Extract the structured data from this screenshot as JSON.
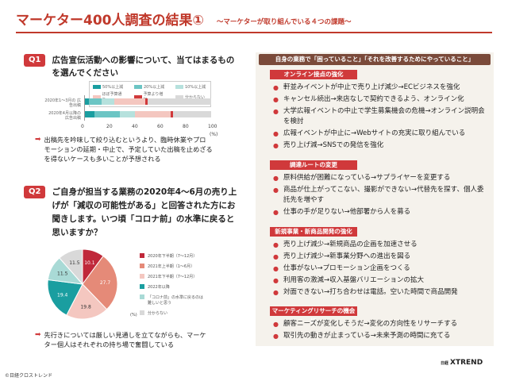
{
  "header": {
    "title": "マーケター400人調査の結果①",
    "subtitle": "〜マーケターが取り組んでいる４つの課題〜"
  },
  "q1": {
    "badge": "Q1",
    "question_lines": [
      "広告宣伝活動への影響について、当てはまるもの",
      "を選んでください"
    ],
    "note_lines": [
      "出稿先を吟味して絞り込むというより、臨時休業やプロ",
      "モーションの延期・中止で、予定していた出稿を止めざる",
      "を得ないケースも多いことが予想される"
    ]
  },
  "q2": {
    "badge": "Q2",
    "question_lines": [
      "ご自身が担当する業務の2020年4〜6月の売り上",
      "げが「減収の可能性がある」と回答された方にお",
      "聞きします。いつ頃「コロナ前」の水準に戻ると",
      "思いますか？"
    ],
    "note_lines": [
      "先行きについては厳しい見通しを立てながらも、マーケ",
      "ター個人はそれぞれの持ち場で奮闘している"
    ]
  },
  "chart_data": [
    {
      "type": "bar",
      "orientation": "horizontal",
      "stacked": true,
      "categories": [
        "2020年1〜3月の\n広告出稿",
        "2020年4月以降の\n広告出稿"
      ],
      "series": [
        {
          "name": "50%以上減",
          "color": "#1a9ea0",
          "values": [
            4,
            8
          ]
        },
        {
          "name": "20%以上減",
          "color": "#6cc5c4",
          "values": [
            10,
            20
          ]
        },
        {
          "name": "10%以上減",
          "color": "#b6e1dd",
          "values": [
            10,
            12
          ]
        },
        {
          "name": "ほぼ予算通り",
          "color": "#f4c7c0",
          "values": [
            24,
            28
          ]
        },
        {
          "name": "予算より増加",
          "color": "#d0393b",
          "values": [
            2,
            2
          ]
        },
        {
          "name": "分からない",
          "color": "#d9d9d9",
          "values": [
            50,
            30
          ]
        }
      ],
      "x_ticks": [
        "0",
        "20",
        "40",
        "60",
        "80",
        "100"
      ],
      "xlim": [
        0,
        100
      ],
      "unit_label": "(%)",
      "legend_position": "top"
    },
    {
      "type": "pie",
      "slices": [
        {
          "label": "2020年下半期（7〜12月）",
          "value": 10.1,
          "color": "#c0283a"
        },
        {
          "label": "2021年上半期（1〜6月）",
          "value": 27.7,
          "color": "#e58a78"
        },
        {
          "label": "2021年下半期（7〜12月）",
          "value": 19.8,
          "color": "#f4c7c0"
        },
        {
          "label": "2022年以降",
          "value": 19.4,
          "color": "#1a9ea0"
        },
        {
          "label": "「コロナ前」の水準に戻るのは難しいと思う",
          "value": 11.5,
          "color": "#a9dad6"
        },
        {
          "label": "分からない",
          "value": 11.5,
          "color": "#d9d9d9"
        }
      ],
      "unit_label": "(%)",
      "legend_position": "right"
    }
  ],
  "right_panel": {
    "header": "自身の業務で「困っていること」「それを改善するためにやっていること」",
    "sections": [
      {
        "title": "オンライン接点の強化",
        "items": [
          "軒並みイベントが中止で売り上げ減少→ECビジネスを強化",
          "キャンセル続出→来店なしで契約できるよう、オンライン化",
          "大学広報イベントの中止で学生募集機会の危機→オンライン説明会を検討",
          "広報イベントが中止に→Webサイトの充実に取り組んでいる",
          "売り上げ減→SNSでの発信を強化"
        ]
      },
      {
        "title": "調達ルートの変更",
        "items": [
          "原料供給が困難になっている→サプライヤーを変更する",
          "商品が仕上がってこない、撮影ができない→代替先を探す、個人委託先を増やす",
          "仕事の手が足りない→他部署から人を募る"
        ]
      },
      {
        "title": "新規事業・新商品開発の強化",
        "items": [
          "売り上げ減少→新規商品の企画を加速させる",
          "売り上げ減少→新事業分野への進出を図る",
          "仕事がない→プロモーション企画をつくる",
          "利用客の激減→収入基盤バリエーションの拡大",
          "対面できない→打ち合わせは電話。空いた時間で商品開発"
        ]
      },
      {
        "title": "マーケティングリサーチの機会に",
        "items": [
          "顧客ニーズが変化しそうだ→変化の方向性をリサーチする",
          "取引先の動きが止まっている→未来予測の時間に充てる"
        ]
      }
    ]
  },
  "footer": {
    "copyright": "©日経クロストレンド",
    "logo_small": "日経",
    "logo_main": "XTREND"
  }
}
